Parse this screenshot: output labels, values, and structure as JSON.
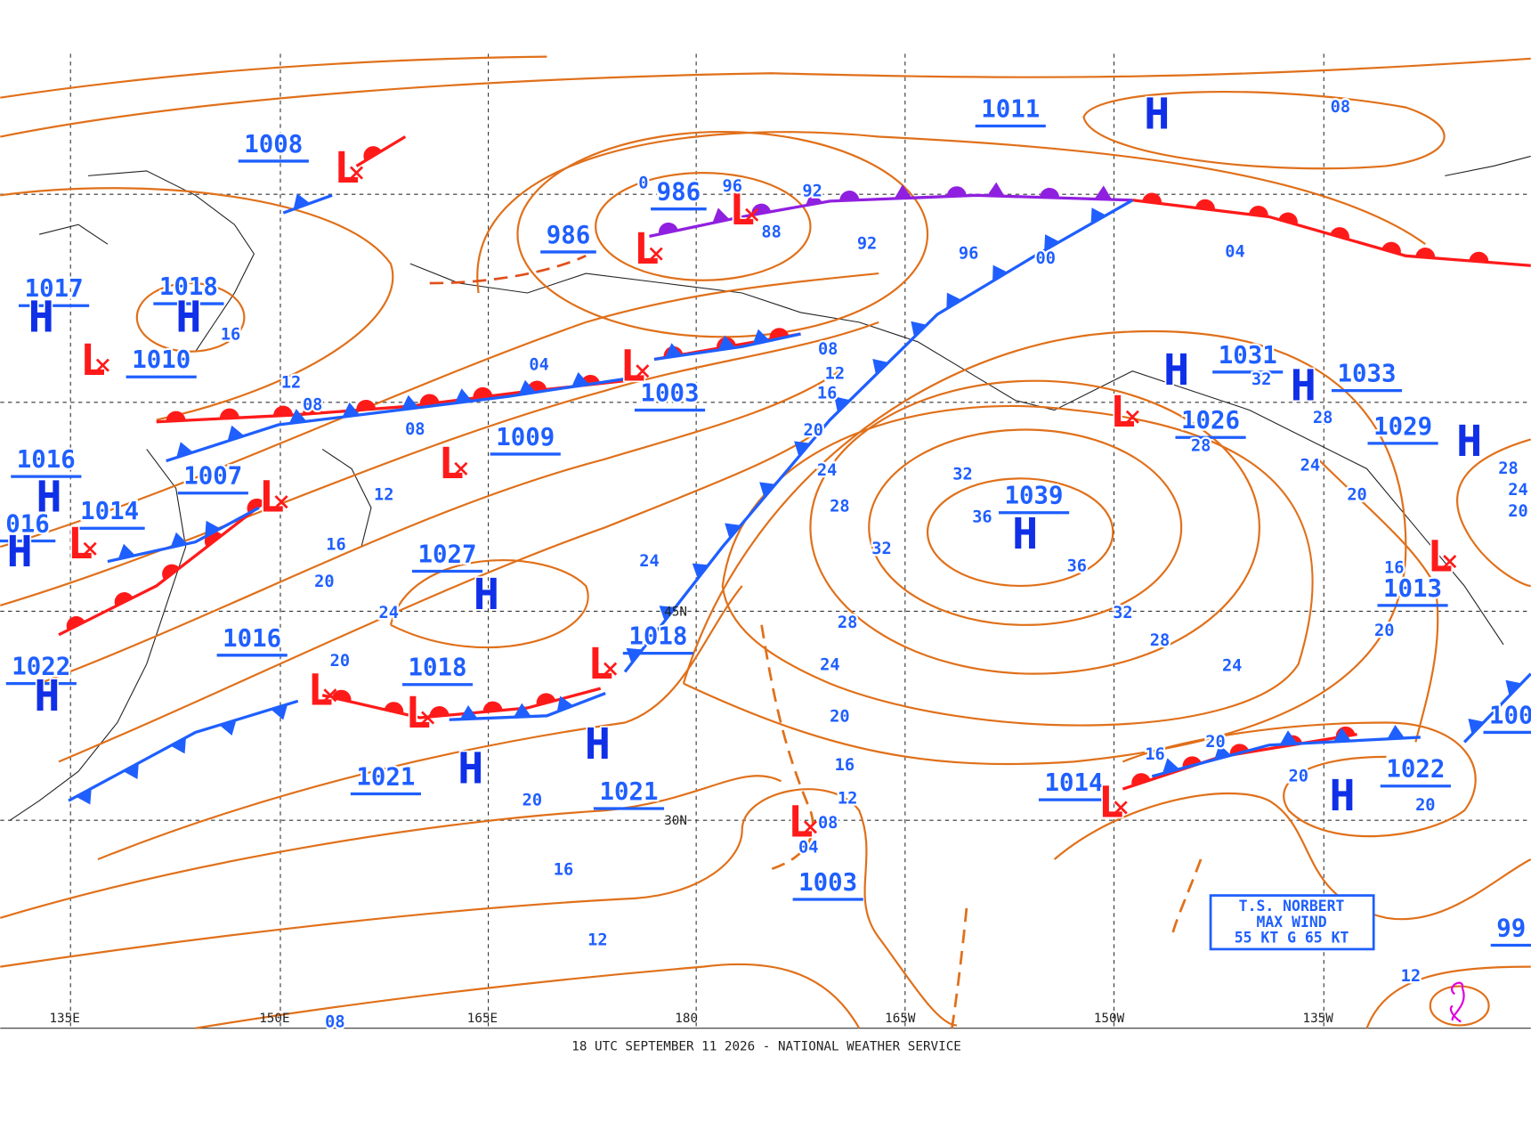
{
  "footer": "18 UTC SEPTEMBER 11 2026 - NATIONAL WEATHER SERVICE",
  "grid_labels": {
    "longitudes": [
      "135E",
      "150E",
      "165E",
      "180",
      "165W",
      "150W",
      "135W"
    ],
    "latitudes": [
      "45N",
      "30N"
    ]
  },
  "pressure_labels": [
    "1011",
    "1008",
    "986",
    "986",
    "1017",
    "1018",
    "1010",
    "1003",
    "1009",
    "1016",
    "1007",
    "1014",
    "016",
    "1027",
    "1016",
    "1022",
    "1018",
    "1018",
    "1021",
    "1021",
    "1039",
    "1031",
    "1026",
    "1033",
    "1029",
    "1013",
    "1014",
    "1022",
    "1003",
    "100",
    "99"
  ],
  "center_letters": [
    "H",
    "L",
    "L",
    "L",
    "H",
    "H",
    "L",
    "L",
    "L",
    "H",
    "L",
    "L",
    "H",
    "H",
    "H",
    "L",
    "L",
    "L",
    "H",
    "H",
    "H",
    "H",
    "L",
    "H",
    "H",
    "L",
    "L",
    "H",
    "L"
  ],
  "isobar_labels": [
    "08",
    "96",
    "92",
    "0",
    "88",
    "92",
    "96",
    "00",
    "04",
    "04",
    "08",
    "12",
    "16",
    "20",
    "24",
    "28",
    "32",
    "36",
    "32",
    "36",
    "32",
    "28",
    "24",
    "28",
    "28",
    "32",
    "24",
    "20",
    "16",
    "20",
    "24",
    "28",
    "20",
    "16",
    "12",
    "08",
    "08",
    "12",
    "16",
    "20",
    "24",
    "20",
    "24",
    "28",
    "24",
    "20",
    "16",
    "12",
    "08",
    "04",
    "20",
    "16",
    "12",
    "08",
    "20",
    "16",
    "20",
    "20",
    "12"
  ],
  "storm_box": {
    "lines": [
      "T.S. NORBERT",
      "MAX WIND",
      "55 KT G 65 KT"
    ]
  }
}
